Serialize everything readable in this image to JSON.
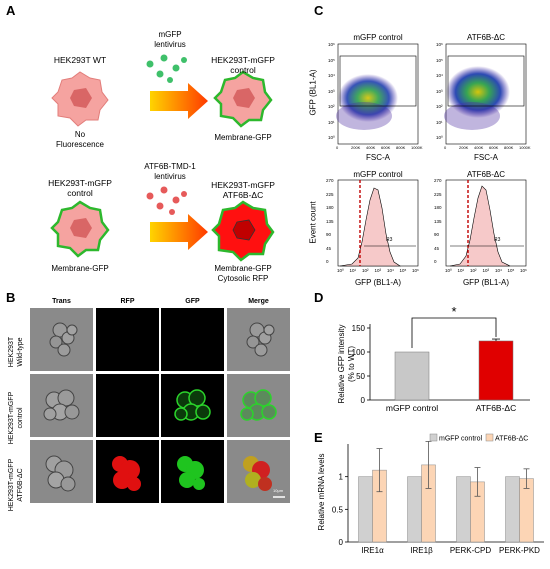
{
  "panelA": {
    "label": "A",
    "wt_label": "HEK293T WT",
    "no_fluor": "No\nFluorescence",
    "lenti1": "mGFP\nlentivirus",
    "ctrl_title": "HEK293T-mGFP\ncontrol",
    "membrane_gfp": "Membrane-GFP",
    "mgfp_left_title": "HEK293T-mGFP\ncontrol",
    "lenti2": "ATF6B-TMD-1\nlentivirus",
    "atf_title": "HEK293T-mGFP\nATF6B-ΔC",
    "membrane_gfp2": "Membrane-GFP",
    "membrane_cyto": "Membrane-GFP\nCytosolic RFP"
  },
  "panelB": {
    "label": "B",
    "cols": [
      "Trans",
      "RFP",
      "GFP",
      "Merge"
    ],
    "rows": [
      "HEK293T\nWild-type",
      "HEK293T-mGFP\ncontrol",
      "HEK293T-mGFP\nATF6B-ΔC"
    ],
    "scalebar": "10μm"
  },
  "panelC": {
    "label": "C",
    "scatter_titles": [
      "mGFP control",
      "ATF6B-ΔC"
    ],
    "scatter_ylabel": "GFP (BL1-A)",
    "scatter_xlabel": "FSC-A",
    "scatter_xticks": [
      "0",
      "200K",
      "400K",
      "600K",
      "800K",
      "1000K"
    ],
    "scatter_yticks": [
      "10⁶",
      "10⁵",
      "10⁴",
      "10³",
      "10²",
      "10¹",
      "10⁰"
    ],
    "hist_titles": [
      "mGFP control",
      "ATF6B-ΔC"
    ],
    "hist_ylabel": "Event count",
    "hist_xlabel": "GFP (BL1-A)",
    "hist_yticks": [
      "270",
      "225",
      "180",
      "135",
      "90",
      "45",
      "0"
    ],
    "hist_xticks": [
      "10⁰",
      "10¹",
      "10²",
      "10³",
      "10⁴",
      "10⁵",
      "10⁶"
    ],
    "gate": "R3"
  },
  "chart_data": [
    {
      "panel": "D",
      "type": "bar",
      "categories": [
        "mGFP control",
        "ATF6B-ΔC"
      ],
      "values": [
        100,
        123
      ],
      "errors": [
        0,
        4
      ],
      "colors": [
        "#c8c8c8",
        "#e00000"
      ],
      "ylabel": "Relative GFP intensity\n(% to WT)",
      "ylim": [
        0,
        150
      ],
      "yticks": [
        0,
        50,
        100,
        150
      ],
      "significance": "*"
    },
    {
      "panel": "E",
      "type": "bar",
      "categories": [
        "IRE1α",
        "IRE1β",
        "PERK-CPD",
        "PERK-PKD"
      ],
      "series": [
        {
          "name": "mGFP control",
          "color": "#d0d0d0",
          "values": [
            1.0,
            1.0,
            1.0,
            1.0
          ],
          "errors": [
            0,
            0,
            0,
            0
          ]
        },
        {
          "name": "ATF6B-ΔC",
          "color": "#fcd5b5",
          "values": [
            1.1,
            1.18,
            0.92,
            0.97
          ],
          "errors": [
            0.33,
            0.36,
            0.22,
            0.15
          ]
        }
      ],
      "ylabel": "Relative mRNA levels",
      "ylim": [
        0,
        1.5
      ],
      "yticks": [
        0,
        0.5,
        1
      ],
      "legend": "top-right"
    }
  ]
}
